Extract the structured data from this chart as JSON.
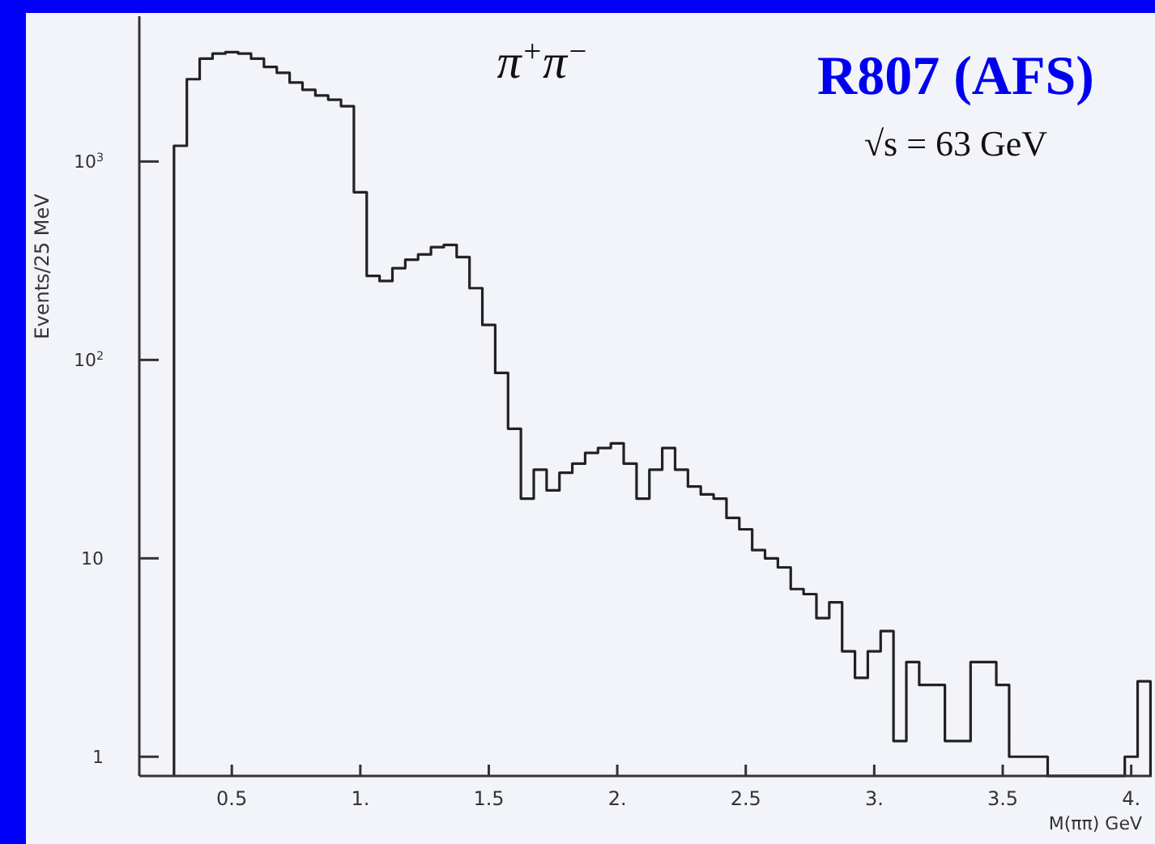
{
  "chart_data": {
    "type": "histogram",
    "title": "R807 (AFS)",
    "xlabel": "M(ππ) GeV",
    "ylabel": "Events/25 MeV",
    "annotations": [
      "π$^{+}$π$^{−}$",
      "√s = 63 GeV"
    ],
    "bins": [
      0.275,
      0.325,
      0.375,
      0.425,
      0.475,
      0.525,
      0.575,
      0.625,
      0.675,
      0.725,
      0.775,
      0.825,
      0.875,
      0.925,
      0.975,
      1.025,
      1.075,
      1.125,
      1.175,
      1.225,
      1.275,
      1.325,
      1.375,
      1.425,
      1.475,
      1.525,
      1.575,
      1.625,
      1.675,
      1.725,
      1.775,
      1.825,
      1.875,
      1.925,
      1.975,
      2.025,
      2.075,
      2.125,
      2.175,
      2.225,
      2.275,
      2.325,
      2.375,
      2.425,
      2.475,
      2.525,
      2.575,
      2.625,
      2.675,
      2.725,
      2.775,
      2.825,
      2.875,
      2.925,
      2.975,
      3.025,
      3.075,
      3.125,
      3.175,
      3.225,
      3.275,
      3.325,
      3.375,
      3.425,
      3.475,
      3.525,
      3.575,
      3.625,
      3.675,
      3.725,
      3.775,
      3.825,
      3.875,
      3.925,
      3.975,
      4.025,
      4.075
    ],
    "values": [
      1200,
      2600,
      3300,
      3500,
      3560,
      3500,
      3300,
      3000,
      2800,
      2500,
      2300,
      2150,
      2050,
      1900,
      700,
      265,
      250,
      290,
      320,
      340,
      370,
      380,
      330,
      230,
      150,
      86,
      45,
      20,
      28,
      22,
      27,
      30,
      34,
      36,
      38,
      30,
      20,
      28,
      36,
      28,
      23,
      21,
      20,
      16,
      14,
      11,
      10,
      9,
      7,
      6.6,
      5,
      6,
      3.4,
      2.5,
      3.4,
      4.3,
      1.2,
      3,
      2.3,
      2.3,
      1.2,
      1.2,
      3,
      3,
      2.3,
      1,
      1,
      1,
      null,
      null,
      null,
      null,
      null,
      null,
      1,
      2.4
    ],
    "color": "#222222",
    "xlim": [
      0.14,
      4.08
    ],
    "ylim": [
      0.8,
      5400
    ],
    "log": "y",
    "xticks": [
      {
        "value": 0.5,
        "label": "0.5"
      },
      {
        "value": 1,
        "label": "1."
      },
      {
        "value": 1.5,
        "label": "1.5"
      },
      {
        "value": 2,
        "label": "2."
      },
      {
        "value": 2.5,
        "label": "2.5"
      },
      {
        "value": 3,
        "label": "3."
      },
      {
        "value": 3.5,
        "label": "3.5"
      },
      {
        "value": 4,
        "label": "4."
      }
    ],
    "yticks": [
      1,
      10,
      {
        "value": 100,
        "label": "10$^{2}$"
      },
      {
        "value": 1000,
        "label": "10$^{3}$"
      }
    ]
  }
}
